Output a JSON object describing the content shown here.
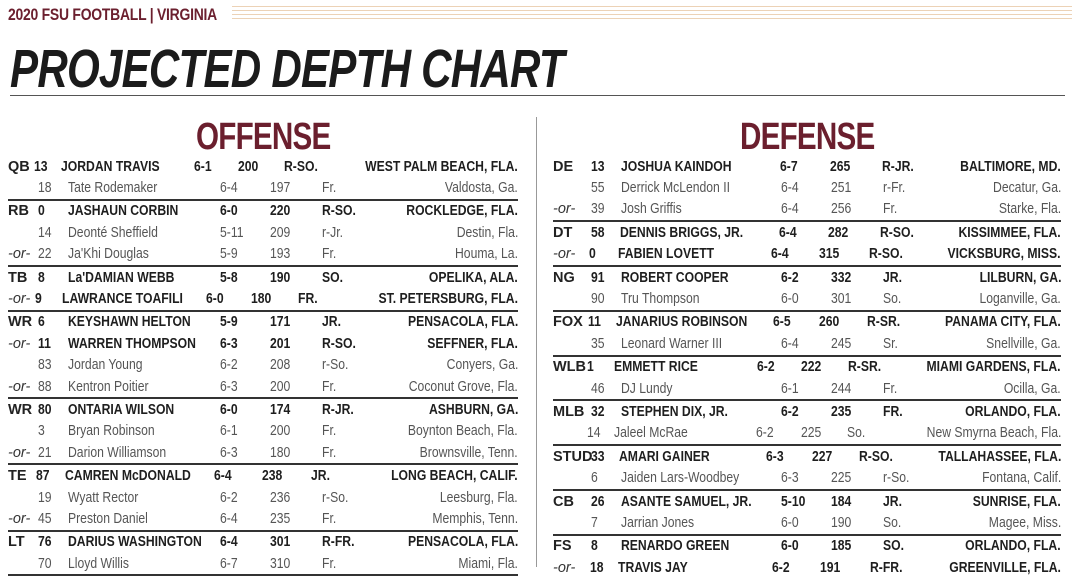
{
  "header": {
    "kicker": "2020 FSU FOOTBALL | VIRGINIA",
    "title": "PROJECTED DEPTH CHART",
    "accent_color": "#6b1f2e",
    "stripe_color": "#ecd2b6"
  },
  "offense": {
    "title": "OFFENSE",
    "rows": [
      {
        "pos": "QB",
        "num": "13",
        "name": "JORDAN TRAVIS",
        "ht": "6-1",
        "wt": "200",
        "yr": "R-SO.",
        "home": "WEST PALM BEACH, FLA.",
        "starter": true,
        "end": false
      },
      {
        "pos": "",
        "num": "18",
        "name": "Tate Rodemaker",
        "ht": "6-4",
        "wt": "197",
        "yr": "Fr.",
        "home": "Valdosta, Ga.",
        "starter": false,
        "end": true
      },
      {
        "pos": "RB",
        "num": "0",
        "name": "JASHAUN CORBIN",
        "ht": "6-0",
        "wt": "220",
        "yr": "R-SO.",
        "home": "ROCKLEDGE, FLA.",
        "starter": true,
        "end": false
      },
      {
        "pos": "",
        "num": "14",
        "name": "Deonté Sheffield",
        "ht": "5-11",
        "wt": "209",
        "yr": "r-Jr.",
        "home": "Destin, Fla.",
        "starter": false,
        "end": false
      },
      {
        "pos": "-or-",
        "num": "22",
        "name": "Ja'Khi Douglas",
        "ht": "5-9",
        "wt": "193",
        "yr": "Fr.",
        "home": "Houma, La.",
        "starter": false,
        "end": true
      },
      {
        "pos": "TB",
        "num": "8",
        "name": "La'DAMIAN WEBB",
        "ht": "5-8",
        "wt": "190",
        "yr": "SO.",
        "home": "OPELIKA, ALA.",
        "starter": true,
        "end": false
      },
      {
        "pos": "-or-",
        "num": "9",
        "name": "LAWRANCE TOAFILI",
        "ht": "6-0",
        "wt": "180",
        "yr": "FR.",
        "home": "ST. PETERSBURG, FLA.",
        "starter": true,
        "end": true
      },
      {
        "pos": "WR",
        "num": "6",
        "name": "KEYSHAWN HELTON",
        "ht": "5-9",
        "wt": "171",
        "yr": "JR.",
        "home": "PENSACOLA, FLA.",
        "starter": true,
        "end": false
      },
      {
        "pos": "-or-",
        "num": "11",
        "name": "WARREN THOMPSON",
        "ht": "6-3",
        "wt": "201",
        "yr": "R-SO.",
        "home": "SEFFNER, FLA.",
        "starter": true,
        "end": false
      },
      {
        "pos": "",
        "num": "83",
        "name": "Jordan Young",
        "ht": "6-2",
        "wt": "208",
        "yr": "r-So.",
        "home": "Conyers, Ga.",
        "starter": false,
        "end": false
      },
      {
        "pos": "-or-",
        "num": "88",
        "name": "Kentron Poitier",
        "ht": "6-3",
        "wt": "200",
        "yr": "Fr.",
        "home": "Coconut Grove, Fla.",
        "starter": false,
        "end": true
      },
      {
        "pos": "WR",
        "num": "80",
        "name": "ONTARIA WILSON",
        "ht": "6-0",
        "wt": "174",
        "yr": "R-JR.",
        "home": "ASHBURN, GA.",
        "starter": true,
        "end": false
      },
      {
        "pos": "",
        "num": "3",
        "name": "Bryan Robinson",
        "ht": "6-1",
        "wt": "200",
        "yr": "Fr.",
        "home": "Boynton Beach, Fla.",
        "starter": false,
        "end": false
      },
      {
        "pos": "-or-",
        "num": "21",
        "name": "Darion Williamson",
        "ht": "6-3",
        "wt": "180",
        "yr": "Fr.",
        "home": "Brownsville, Tenn.",
        "starter": false,
        "end": true
      },
      {
        "pos": "TE",
        "num": "87",
        "name": "CAMREN McDONALD",
        "ht": "6-4",
        "wt": "238",
        "yr": "JR.",
        "home": "LONG BEACH, CALIF.",
        "starter": true,
        "end": false
      },
      {
        "pos": "",
        "num": "19",
        "name": "Wyatt Rector",
        "ht": "6-2",
        "wt": "236",
        "yr": "r-So.",
        "home": "Leesburg, Fla.",
        "starter": false,
        "end": false
      },
      {
        "pos": "-or-",
        "num": "45",
        "name": "Preston Daniel",
        "ht": "6-4",
        "wt": "235",
        "yr": "Fr.",
        "home": "Memphis, Tenn.",
        "starter": false,
        "end": true
      },
      {
        "pos": "LT",
        "num": "76",
        "name": "DARIUS WASHINGTON",
        "ht": "6-4",
        "wt": "301",
        "yr": "R-FR.",
        "home": "PENSACOLA, FLA.",
        "starter": true,
        "end": false
      },
      {
        "pos": "",
        "num": "70",
        "name": "Lloyd Willis",
        "ht": "6-7",
        "wt": "310",
        "yr": "Fr.",
        "home": "Miami, Fla.",
        "starter": false,
        "end": true
      }
    ]
  },
  "defense": {
    "title": "DEFENSE",
    "rows": [
      {
        "pos": "DE",
        "num": "13",
        "name": "JOSHUA KAINDOH",
        "ht": "6-7",
        "wt": "265",
        "yr": "R-JR.",
        "home": "BALTIMORE, MD.",
        "starter": true,
        "end": false
      },
      {
        "pos": "",
        "num": "55",
        "name": "Derrick McLendon II",
        "ht": "6-4",
        "wt": "251",
        "yr": "r-Fr.",
        "home": "Decatur, Ga.",
        "starter": false,
        "end": false
      },
      {
        "pos": "-or-",
        "num": "39",
        "name": "Josh Griffis",
        "ht": "6-4",
        "wt": "256",
        "yr": "Fr.",
        "home": "Starke, Fla.",
        "starter": false,
        "end": true
      },
      {
        "pos": "DT",
        "num": "58",
        "name": "DENNIS BRIGGS, JR.",
        "ht": "6-4",
        "wt": "282",
        "yr": "R-SO.",
        "home": "KISSIMMEE, FLA.",
        "starter": true,
        "end": false
      },
      {
        "pos": "-or-",
        "num": "0",
        "name": "FABIEN LOVETT",
        "ht": "6-4",
        "wt": "315",
        "yr": "R-SO.",
        "home": "VICKSBURG, MISS.",
        "starter": true,
        "end": true
      },
      {
        "pos": "NG",
        "num": "91",
        "name": "ROBERT COOPER",
        "ht": "6-2",
        "wt": "332",
        "yr": "JR.",
        "home": "LILBURN, GA.",
        "starter": true,
        "end": false
      },
      {
        "pos": "",
        "num": "90",
        "name": "Tru Thompson",
        "ht": "6-0",
        "wt": "301",
        "yr": "So.",
        "home": "Loganville, Ga.",
        "starter": false,
        "end": true
      },
      {
        "pos": "FOX",
        "num": "11",
        "name": "JANARIUS ROBINSON",
        "ht": "6-5",
        "wt": "260",
        "yr": "R-SR.",
        "home": "PANAMA CITY, FLA.",
        "starter": true,
        "end": false
      },
      {
        "pos": "",
        "num": "35",
        "name": "Leonard Warner III",
        "ht": "6-4",
        "wt": "245",
        "yr": "Sr.",
        "home": "Snellville, Ga.",
        "starter": false,
        "end": true
      },
      {
        "pos": "WLB",
        "num": "1",
        "name": "EMMETT RICE",
        "ht": "6-2",
        "wt": "222",
        "yr": "R-SR.",
        "home": "MIAMI GARDENS, FLA.",
        "starter": true,
        "end": false
      },
      {
        "pos": "",
        "num": "46",
        "name": "DJ Lundy",
        "ht": "6-1",
        "wt": "244",
        "yr": "Fr.",
        "home": "Ocilla, Ga.",
        "starter": false,
        "end": true
      },
      {
        "pos": "MLB",
        "num": "32",
        "name": "STEPHEN DIX, JR.",
        "ht": "6-2",
        "wt": "235",
        "yr": "FR.",
        "home": "ORLANDO, FLA.",
        "starter": true,
        "end": false
      },
      {
        "pos": "",
        "num": "14",
        "name": "Jaleel McRae",
        "ht": "6-2",
        "wt": "225",
        "yr": "So.",
        "home": "New Smyrna Beach, Fla.",
        "starter": false,
        "end": true
      },
      {
        "pos": "STUD",
        "num": "33",
        "name": "AMARI GAINER",
        "ht": "6-3",
        "wt": "227",
        "yr": "R-SO.",
        "home": "TALLAHASSEE, FLA.",
        "starter": true,
        "end": false
      },
      {
        "pos": "",
        "num": "6",
        "name": "Jaiden Lars-Woodbey",
        "ht": "6-3",
        "wt": "225",
        "yr": "r-So.",
        "home": "Fontana, Calif.",
        "starter": false,
        "end": true
      },
      {
        "pos": "CB",
        "num": "26",
        "name": "ASANTE SAMUEL, JR.",
        "ht": "5-10",
        "wt": "184",
        "yr": "JR.",
        "home": "SUNRISE, FLA.",
        "starter": true,
        "end": false
      },
      {
        "pos": "",
        "num": "7",
        "name": "Jarrian Jones",
        "ht": "6-0",
        "wt": "190",
        "yr": "So.",
        "home": "Magee, Miss.",
        "starter": false,
        "end": true
      },
      {
        "pos": "FS",
        "num": "8",
        "name": "RENARDO GREEN",
        "ht": "6-0",
        "wt": "185",
        "yr": "SO.",
        "home": "ORLANDO, FLA.",
        "starter": true,
        "end": false
      },
      {
        "pos": "-or-",
        "num": "18",
        "name": "TRAVIS JAY",
        "ht": "6-2",
        "wt": "191",
        "yr": "R-FR.",
        "home": "GREENVILLE, FLA.",
        "starter": true,
        "end": false
      }
    ]
  }
}
